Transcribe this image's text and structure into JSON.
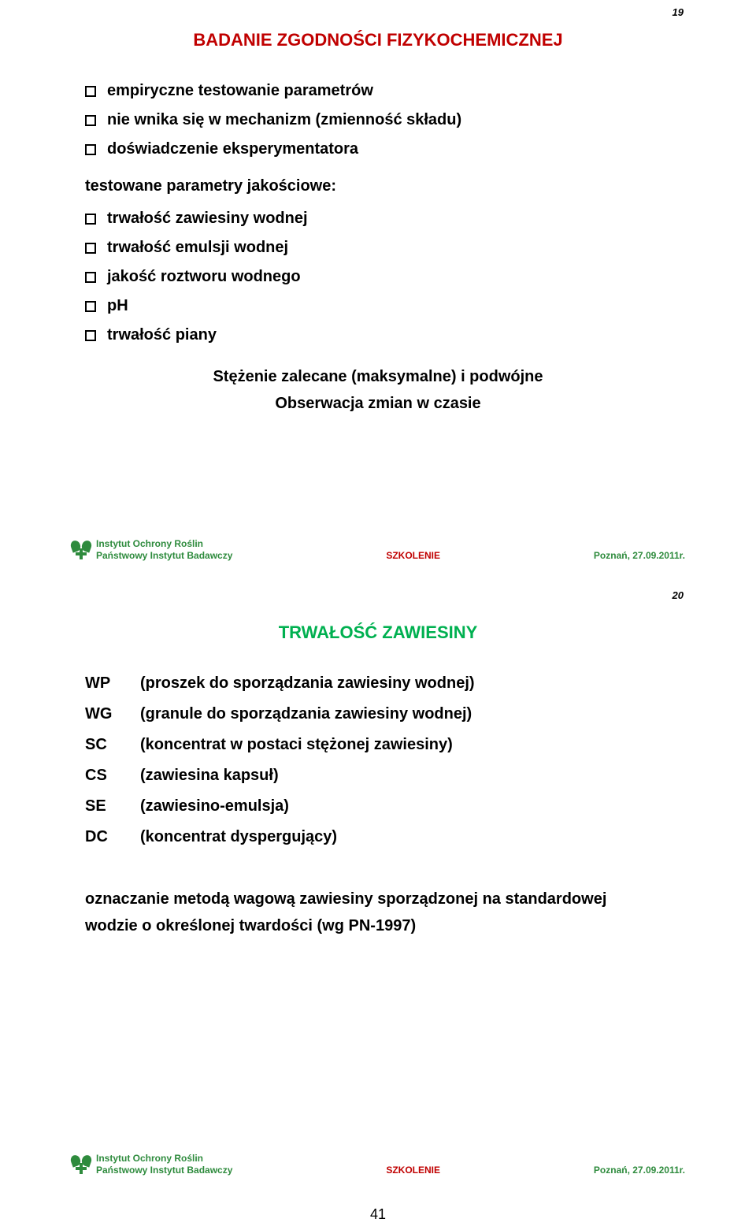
{
  "slide1": {
    "corner_num": "19",
    "title": "BADANIE ZGODNOŚCI FIZYKOCHEMICZNEJ",
    "title_color": "#c00000",
    "bullets_a": [
      "empiryczne testowanie parametrów",
      "nie wnika się w mechanizm (zmienność składu)",
      "doświadczenie eksperymentatora"
    ],
    "sub_heading": "testowane parametry jakościowe:",
    "bullets_b": [
      "trwałość zawiesiny wodnej",
      "trwałość emulsji wodnej",
      "jakość roztworu wodnego",
      "pH",
      "trwałość piany"
    ],
    "center_line1": "Stężenie zalecane (maksymalne) i podwójne",
    "center_line2": "Obserwacja zmian w czasie"
  },
  "slide2": {
    "corner_num": "20",
    "title": "TRWAŁOŚĆ ZAWIESINY",
    "title_color": "#00b050",
    "defs": [
      {
        "code": "WP",
        "desc": "(proszek do sporządzania zawiesiny wodnej)"
      },
      {
        "code": "WG",
        "desc": "(granule do sporządzania zawiesiny wodnej)"
      },
      {
        "code": "SC",
        "desc": "(koncentrat w postaci stężonej zawiesiny)"
      },
      {
        "code": "CS",
        "desc": "(zawiesina kapsuł)"
      },
      {
        "code": "SE",
        "desc": "(zawiesino-emulsja)"
      },
      {
        "code": "DC",
        "desc": "(koncentrat dyspergujący)"
      }
    ],
    "paragraph_l1": "oznaczanie metodą wagową zawiesiny sporządzonej na standardowej",
    "paragraph_l2": "wodzie o określonej twardości (wg PN-1997)"
  },
  "footer": {
    "inst_line1": "Instytut Ochrony Roślin",
    "inst_line2": "Państwowy Instytut Badawczy",
    "mid": "SZKOLENIE",
    "right": "Poznań, 27.09.2011r.",
    "inst_color": "#2e8b3d",
    "mid_color": "#c00000"
  },
  "page_number": "41"
}
